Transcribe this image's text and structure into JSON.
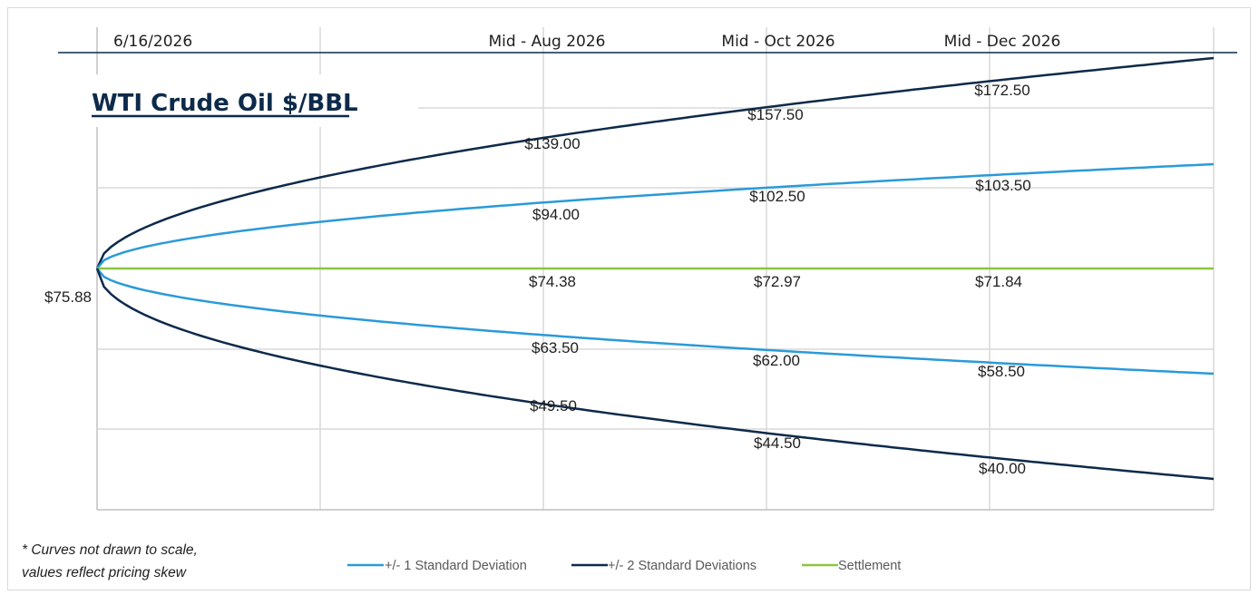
{
  "chart_data": {
    "type": "line",
    "title": "WTI Crude Oil $/BBL",
    "x_labels": [
      "6/16/2026",
      "Mid - Aug 2026",
      "Mid - Oct 2026",
      "Mid - Dec 2026"
    ],
    "start_value": "$75.88",
    "series": [
      {
        "name": "+/- 2 Standard Deviations",
        "bound": "upper",
        "color": "#0d2a4a",
        "labels": [
          "$139.00",
          "$157.50",
          "$172.50"
        ]
      },
      {
        "name": "+/- 1 Standard Deviation",
        "bound": "upper",
        "color": "#2a9ad9",
        "labels": [
          "$94.00",
          "$102.50",
          "$103.50"
        ]
      },
      {
        "name": "Settlement",
        "color": "#8cc63f",
        "labels": [
          "$74.38",
          "$72.97",
          "$71.84"
        ]
      },
      {
        "name": "+/- 1 Standard Deviation",
        "bound": "lower",
        "color": "#2a9ad9",
        "labels": [
          "$63.50",
          "$62.00",
          "$58.50"
        ]
      },
      {
        "name": "+/- 2 Standard Deviations",
        "bound": "lower",
        "color": "#0d2a4a",
        "labels": [
          "$49.50",
          "$44.50",
          "$40.00"
        ]
      }
    ],
    "legend": [
      {
        "name": "+/- 1 Standard Deviation",
        "color": "#2a9ad9"
      },
      {
        "name": "+/- 2 Standard Deviations",
        "color": "#0d2a4a"
      },
      {
        "name": "Settlement",
        "color": "#8cc63f"
      }
    ],
    "legend_position": "bottom",
    "grid": true,
    "footnote": [
      "* Curves not drawn to scale,",
      "values reflect pricing skew"
    ]
  }
}
